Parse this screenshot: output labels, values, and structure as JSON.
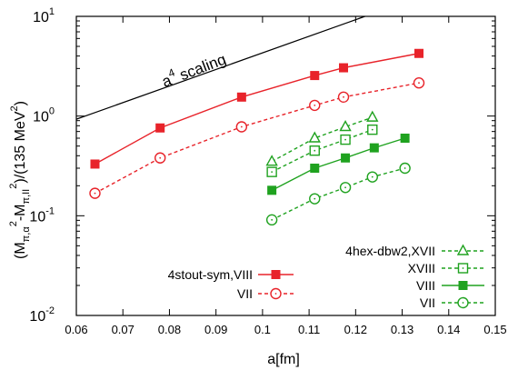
{
  "chart_data": {
    "type": "scatter",
    "xlabel": "a[fm]",
    "ylabel_parts": {
      "open": "(M",
      "sub1": "π,α",
      "sup1": "2",
      "minus": "-M",
      "sub2": "π,II",
      "sup2": "2",
      "mid": ")/(135 MeV",
      "sup3": "2",
      "close": ")"
    },
    "xlim": [
      0.06,
      0.15
    ],
    "ylim": [
      0.01,
      10
    ],
    "yscale": "log",
    "grid": false,
    "x_ticks": [
      "0.06",
      "0.07",
      "0.08",
      "0.09",
      "0.1",
      "0.11",
      "0.12",
      "0.13",
      "0.14",
      "0.15"
    ],
    "y_ticks": [
      {
        "base": "10",
        "exp": "-2"
      },
      {
        "base": "10",
        "exp": "-1"
      },
      {
        "base": "10",
        "exp": "0"
      },
      {
        "base": "10",
        "exp": "1"
      }
    ],
    "annotation": {
      "base": "a",
      "exp": "4",
      "rest": " scaling"
    },
    "reference_line": {
      "x": [
        0.06,
        0.122
      ],
      "y": [
        0.93,
        10
      ]
    },
    "series": [
      {
        "name": "4stout-sym,VIII",
        "color": "#e8232a",
        "marker": "filled-square",
        "line": "solid",
        "x": [
          0.064,
          0.078,
          0.0955,
          0.1112,
          0.1174,
          0.1336
        ],
        "y": [
          0.33,
          0.76,
          1.55,
          2.55,
          3.05,
          4.25
        ]
      },
      {
        "name": "VII",
        "color": "#e8232a",
        "marker": "open-circle-dot",
        "line": "dashed",
        "x": [
          0.064,
          0.078,
          0.0955,
          0.1112,
          0.1174,
          0.1336
        ],
        "y": [
          0.168,
          0.38,
          0.78,
          1.28,
          1.55,
          2.15
        ]
      },
      {
        "name": "4hex-dbw2,XVII",
        "color": "#1fa21f",
        "marker": "open-triangle",
        "line": "dashed",
        "x": [
          0.102,
          0.1112,
          0.1178,
          0.1236
        ],
        "y": [
          0.35,
          0.6,
          0.78,
          0.97
        ]
      },
      {
        "name": "XVIII",
        "color": "#1fa21f",
        "marker": "open-square-dot",
        "line": "dashed",
        "x": [
          0.102,
          0.1112,
          0.1178,
          0.1236
        ],
        "y": [
          0.275,
          0.45,
          0.58,
          0.73
        ]
      },
      {
        "name": "VIII",
        "color": "#1fa21f",
        "marker": "filled-square",
        "line": "solid",
        "x": [
          0.102,
          0.1112,
          0.1178,
          0.124,
          0.1306
        ],
        "y": [
          0.18,
          0.3,
          0.38,
          0.48,
          0.6
        ]
      },
      {
        "name": "VII",
        "color": "#1fa21f",
        "marker": "open-circle-dot",
        "line": "dashed",
        "x": [
          0.102,
          0.1112,
          0.1178,
          0.1236,
          0.1306
        ],
        "y": [
          0.091,
          0.148,
          0.192,
          0.245,
          0.3
        ]
      }
    ],
    "legend_groups": [
      {
        "placement": "bottom-left",
        "series": [
          0,
          1
        ]
      },
      {
        "placement": "bottom-right",
        "series": [
          2,
          3,
          4,
          5
        ]
      }
    ]
  }
}
